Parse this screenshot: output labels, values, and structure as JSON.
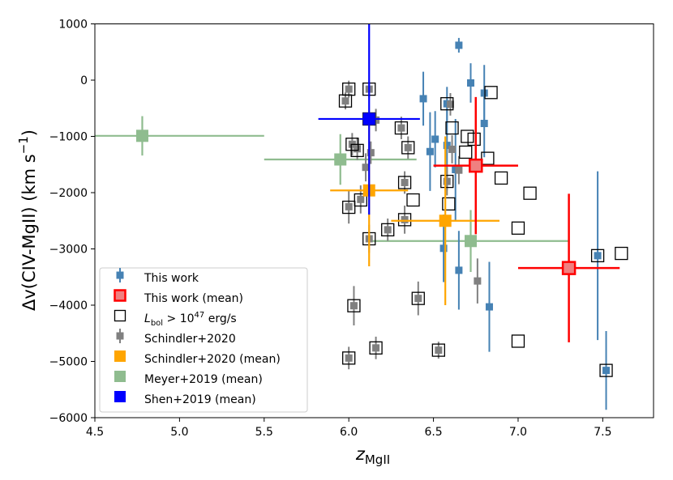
{
  "chart_data": {
    "type": "scatter",
    "title": "",
    "xlabel": "z_MgII",
    "xlabel_main": "z",
    "xlabel_sub": "MgII",
    "ylabel": "Δv(CIV-MgII) (km s⁻¹)",
    "ylabel_main": "Δv(CIV-MgII) (km s",
    "ylabel_sup": "−1",
    "ylabel_end": ")",
    "xlim": [
      4.5,
      7.8
    ],
    "ylim": [
      -6000,
      1000
    ],
    "xticks": [
      4.5,
      5.0,
      5.5,
      6.0,
      6.5,
      7.0,
      7.5
    ],
    "xtick_labels": [
      "4.5",
      "5.0",
      "5.5",
      "6.0",
      "6.5",
      "7.0",
      "7.5"
    ],
    "yticks": [
      1000,
      0,
      -1000,
      -2000,
      -3000,
      -4000,
      -5000,
      -6000
    ],
    "ytick_labels": [
      "1000",
      "0",
      "−1000",
      "−2000",
      "−3000",
      "−4000",
      "−5000",
      "−6000"
    ],
    "colors": {
      "this_work": "#4682b4",
      "this_work_mean_fill": "#f08080",
      "this_work_mean_edge": "#ff0000",
      "schindler": "#808080",
      "schindler_mean": "#ffa500",
      "meyer_mean": "#8fbc8f",
      "shen_mean": "#0000ff",
      "highlum_edge": "#000000"
    },
    "series": {
      "this_work": {
        "name": "This work",
        "points": [
          {
            "x": 6.65,
            "y": 620,
            "err": 130
          },
          {
            "x": 6.44,
            "y": -330,
            "err": 480
          },
          {
            "x": 6.72,
            "y": -50,
            "err": 350
          },
          {
            "x": 6.8,
            "y": -230,
            "err": 500
          },
          {
            "x": 6.8,
            "y": -770,
            "err": 600
          },
          {
            "x": 6.58,
            "y": -420,
            "err": 300
          },
          {
            "x": 6.48,
            "y": -1270,
            "err": 700
          },
          {
            "x": 6.51,
            "y": -1050,
            "err": 500
          },
          {
            "x": 6.58,
            "y": -1160,
            "err": 800
          },
          {
            "x": 6.63,
            "y": -1590,
            "err": 900
          },
          {
            "x": 6.56,
            "y": -2990,
            "err": 600
          },
          {
            "x": 6.65,
            "y": -3380,
            "err": 700
          },
          {
            "x": 6.83,
            "y": -4030,
            "err": 800
          },
          {
            "x": 7.47,
            "y": -3120,
            "err": 1500
          },
          {
            "x": 7.52,
            "y": -5160,
            "err": 700
          }
        ]
      },
      "this_work_mean": {
        "name": "This work (mean)",
        "points": [
          {
            "x": 6.75,
            "y": -1520,
            "xerr": 0.25,
            "yerr": 1220
          },
          {
            "x": 7.3,
            "y": -3340,
            "xerr": 0.3,
            "yerr": 1320
          }
        ]
      },
      "high_lum": {
        "name": "L_bol > 10^47 erg/s",
        "points": [
          {
            "x": 6.0,
            "y": -160
          },
          {
            "x": 6.12,
            "y": -160
          },
          {
            "x": 5.98,
            "y": -370
          },
          {
            "x": 6.58,
            "y": -420
          },
          {
            "x": 6.84,
            "y": -220
          },
          {
            "x": 6.12,
            "y": -690
          },
          {
            "x": 6.31,
            "y": -850
          },
          {
            "x": 6.02,
            "y": -1140
          },
          {
            "x": 6.05,
            "y": -1250
          },
          {
            "x": 6.35,
            "y": -1200
          },
          {
            "x": 6.61,
            "y": -850
          },
          {
            "x": 6.7,
            "y": -1000
          },
          {
            "x": 6.74,
            "y": -1050
          },
          {
            "x": 6.69,
            "y": -1280
          },
          {
            "x": 6.82,
            "y": -1390
          },
          {
            "x": 6.9,
            "y": -1740
          },
          {
            "x": 6.58,
            "y": -1800
          },
          {
            "x": 6.33,
            "y": -1820
          },
          {
            "x": 6.07,
            "y": -2130
          },
          {
            "x": 6.38,
            "y": -2130
          },
          {
            "x": 6.59,
            "y": -2200
          },
          {
            "x": 6.0,
            "y": -2260
          },
          {
            "x": 6.33,
            "y": -2480
          },
          {
            "x": 6.23,
            "y": -2660
          },
          {
            "x": 6.12,
            "y": -2820
          },
          {
            "x": 7.07,
            "y": -2010
          },
          {
            "x": 7.0,
            "y": -2630
          },
          {
            "x": 7.61,
            "y": -3080
          },
          {
            "x": 7.47,
            "y": -3120
          },
          {
            "x": 6.03,
            "y": -4010
          },
          {
            "x": 6.41,
            "y": -3880
          },
          {
            "x": 6.0,
            "y": -4940
          },
          {
            "x": 6.16,
            "y": -4760
          },
          {
            "x": 6.53,
            "y": -4800
          },
          {
            "x": 7.0,
            "y": -4640
          },
          {
            "x": 7.52,
            "y": -5160
          }
        ]
      },
      "schindler": {
        "name": "Schindler+2020",
        "points": [
          {
            "x": 6.0,
            "y": -160,
            "err": 150
          },
          {
            "x": 6.12,
            "y": -160,
            "err": 150
          },
          {
            "x": 5.98,
            "y": -370,
            "err": 150
          },
          {
            "x": 6.6,
            "y": -430,
            "err": 200
          },
          {
            "x": 6.16,
            "y": -710,
            "err": 200
          },
          {
            "x": 6.31,
            "y": -850,
            "err": 200
          },
          {
            "x": 6.02,
            "y": -1140,
            "err": 200
          },
          {
            "x": 6.05,
            "y": -1220,
            "err": 200
          },
          {
            "x": 6.13,
            "y": -1290,
            "err": 200
          },
          {
            "x": 6.35,
            "y": -1200,
            "err": 200
          },
          {
            "x": 6.61,
            "y": -1230,
            "err": 250
          },
          {
            "x": 6.65,
            "y": -1600,
            "err": 250
          },
          {
            "x": 6.1,
            "y": -1550,
            "err": 250
          },
          {
            "x": 6.33,
            "y": -1820,
            "err": 200
          },
          {
            "x": 6.58,
            "y": -1800,
            "err": 250
          },
          {
            "x": 6.07,
            "y": -2120,
            "err": 250
          },
          {
            "x": 6.0,
            "y": -2250,
            "err": 300
          },
          {
            "x": 6.33,
            "y": -2480,
            "err": 250
          },
          {
            "x": 6.23,
            "y": -2660,
            "err": 200
          },
          {
            "x": 6.12,
            "y": -2820,
            "err": 250
          },
          {
            "x": 6.76,
            "y": -3570,
            "err": 400
          },
          {
            "x": 6.03,
            "y": -4010,
            "err": 350
          },
          {
            "x": 6.41,
            "y": -3880,
            "err": 300
          },
          {
            "x": 6.0,
            "y": -4940,
            "err": 200
          },
          {
            "x": 6.16,
            "y": -4760,
            "err": 200
          },
          {
            "x": 6.53,
            "y": -4800,
            "err": 150
          }
        ]
      },
      "schindler_mean": {
        "name": "Schindler+2020 (mean)",
        "points": [
          {
            "x": 6.12,
            "y": -1960,
            "xerr": 0.23,
            "yerr": 1350
          },
          {
            "x": 6.57,
            "y": -2500,
            "xerr": 0.32,
            "yerr": 1500
          }
        ]
      },
      "meyer_mean": {
        "name": "Meyer+2019 (mean)",
        "points": [
          {
            "x": 4.78,
            "y": -990,
            "xerr": 0.72,
            "yerr": 350
          },
          {
            "x": 5.95,
            "y": -1410,
            "xerr": 0.45,
            "yerr": 450
          },
          {
            "x": 6.72,
            "y": -2860,
            "xerr": 0.58,
            "yerr": 550
          }
        ]
      },
      "shen_mean": {
        "name": "Shen+2019 (mean)",
        "points": [
          {
            "x": 6.12,
            "y": -690,
            "xerr": 0.3,
            "yerr": 1700
          }
        ]
      }
    },
    "legend": {
      "placement": "lower-left",
      "entries": [
        "This work",
        "This work (mean)",
        "L_bol > 10^47 erg/s",
        "Schindler+2020",
        "Schindler+2020 (mean)",
        "Meyer+2019 (mean)",
        "Shen+2019 (mean)"
      ],
      "lum_entry_parts": {
        "l": "L",
        "l_sub": "bol",
        "mid": " > 10",
        "exp": "47",
        "unit": " erg/s"
      }
    }
  }
}
